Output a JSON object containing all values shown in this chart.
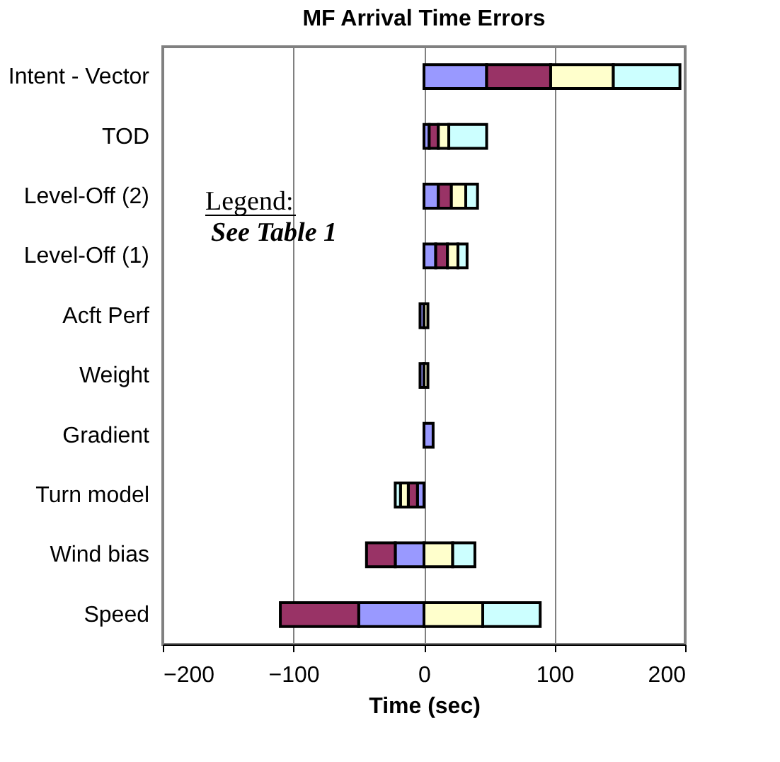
{
  "chart_data": {
    "type": "bar",
    "title": "MF Arrival Time Errors",
    "xlabel": "Time (sec)",
    "orientation": "horizontal",
    "stacked": true,
    "categories": [
      "Intent - Vector",
      "TOD",
      "Level-Off (2)",
      "Level-Off (1)",
      "Acft Perf",
      "Weight",
      "Gradient",
      "Turn model",
      "Wind bias",
      "Speed"
    ],
    "series": [
      {
        "color": "#9999ff",
        "values": [
          48,
          4,
          11,
          9,
          -3,
          -3,
          7,
          -5,
          -22,
          -50
        ]
      },
      {
        "color": "#993366",
        "values": [
          49,
          7,
          10,
          9,
          null,
          null,
          null,
          -7,
          -22,
          -60
        ]
      },
      {
        "color": "#ffffcc",
        "values": [
          48,
          8,
          11,
          8,
          3,
          3,
          null,
          -6,
          22,
          45
        ]
      },
      {
        "color": "#ccffff",
        "values": [
          51,
          29,
          9,
          7,
          null,
          null,
          null,
          -4,
          17,
          44
        ]
      }
    ],
    "xlim": [
      -200,
      200
    ],
    "xticks": [
      -200,
      -100,
      0,
      100,
      200
    ],
    "grid": "x",
    "annotations": [
      "Legend:",
      "See Table 1"
    ]
  }
}
